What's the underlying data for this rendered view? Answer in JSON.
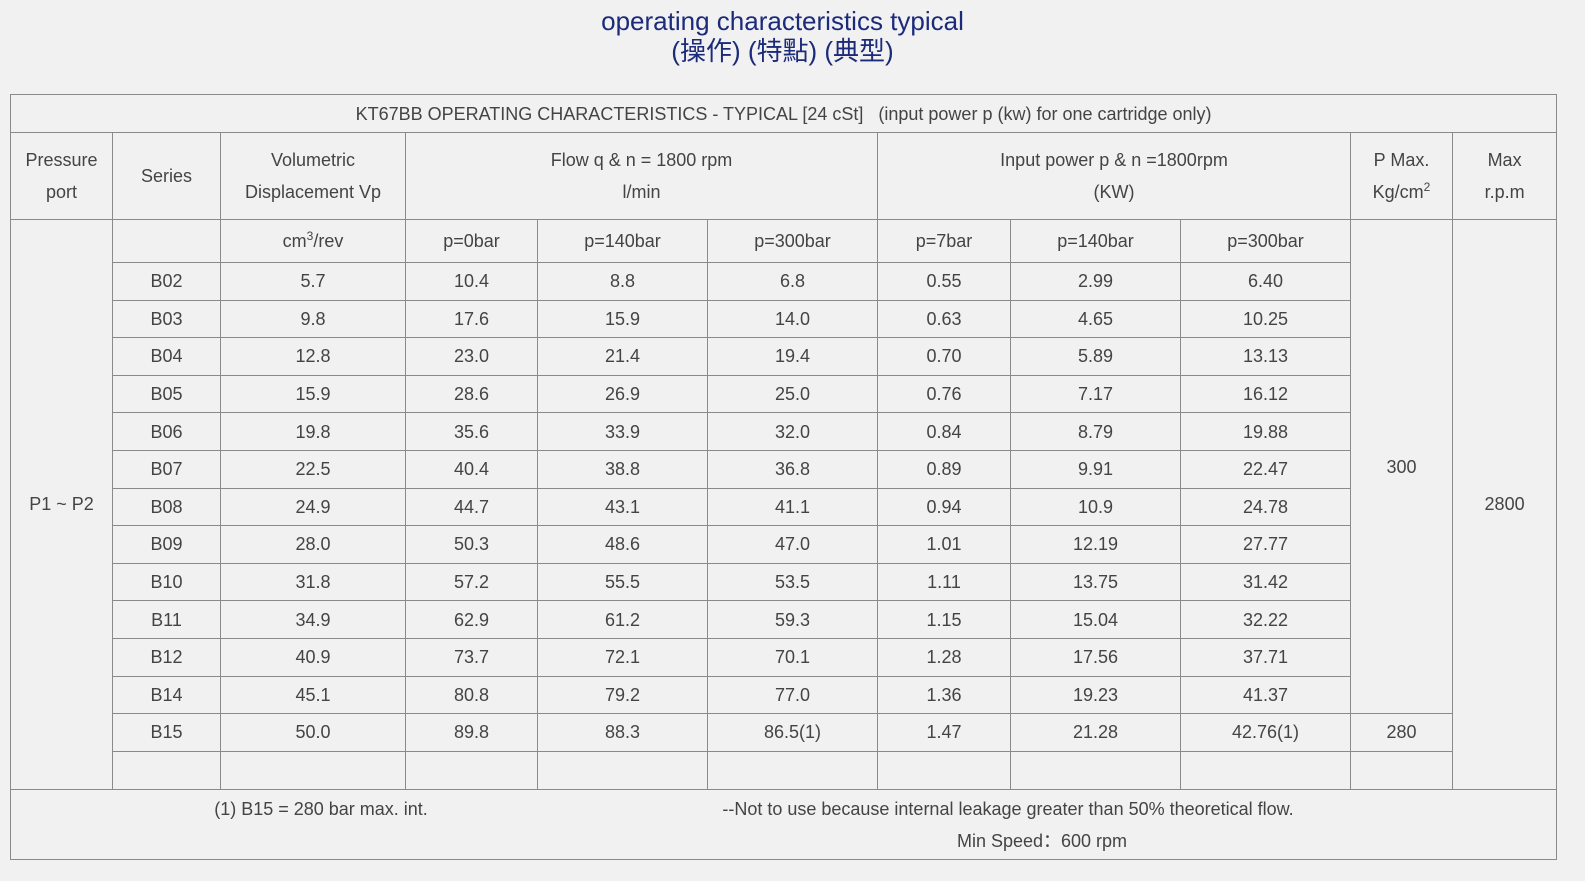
{
  "header": {
    "title": "operating characteristics typical",
    "subtitle": "(操作) (特點) (典型)"
  },
  "table": {
    "caption": "KT67BB OPERATING CHARACTERISTICS - TYPICAL [24 cSt]   (input power p (kw) for one cartridge only)",
    "head": {
      "pressure_port": [
        "Pressure",
        "port"
      ],
      "series": "Series",
      "displacement": [
        "Volumetric",
        "Displacement Vp"
      ],
      "flow": [
        "Flow q & n = 1800 rpm",
        "l/min"
      ],
      "power": [
        "Input power p & n =1800rpm",
        "(KW)"
      ],
      "pmax": {
        "line": "P Max.",
        "unit": "Kg/cm",
        "sup": "2"
      },
      "max_rpm": [
        "Max",
        "r.p.m"
      ]
    },
    "subhead": {
      "displacement_unit": {
        "unit": "cm",
        "sup": "3",
        "rest": "/rev"
      },
      "flow": [
        "p=0bar",
        "p=140bar",
        "p=300bar"
      ],
      "power": [
        "p=7bar",
        "p=140bar",
        "p=300bar"
      ]
    },
    "pressure_port": "P1 ~ P2",
    "pmax": [
      "300",
      "280"
    ],
    "max_rpm": "2800",
    "rows": [
      [
        "B02",
        "5.7",
        "10.4",
        "8.8",
        "6.8",
        "0.55",
        "2.99",
        "6.40"
      ],
      [
        "B03",
        "9.8",
        "17.6",
        "15.9",
        "14.0",
        "0.63",
        "4.65",
        "10.25"
      ],
      [
        "B04",
        "12.8",
        "23.0",
        "21.4",
        "19.4",
        "0.70",
        "5.89",
        "13.13"
      ],
      [
        "B05",
        "15.9",
        "28.6",
        "26.9",
        "25.0",
        "0.76",
        "7.17",
        "16.12"
      ],
      [
        "B06",
        "19.8",
        "35.6",
        "33.9",
        "32.0",
        "0.84",
        "8.79",
        "19.88"
      ],
      [
        "B07",
        "22.5",
        "40.4",
        "38.8",
        "36.8",
        "0.89",
        "9.91",
        "22.47"
      ],
      [
        "B08",
        "24.9",
        "44.7",
        "43.1",
        "41.1",
        "0.94",
        "10.9",
        "24.78"
      ],
      [
        "B09",
        "28.0",
        "50.3",
        "48.6",
        "47.0",
        "1.01",
        "12.19",
        "27.77"
      ],
      [
        "B10",
        "31.8",
        "57.2",
        "55.5",
        "53.5",
        "1.11",
        "13.75",
        "31.42"
      ],
      [
        "B11",
        "34.9",
        "62.9",
        "61.2",
        "59.3",
        "1.15",
        "15.04",
        "32.22"
      ],
      [
        "B12",
        "40.9",
        "73.7",
        "72.1",
        "70.1",
        "1.28",
        "17.56",
        "37.71"
      ],
      [
        "B14",
        "45.1",
        "80.8",
        "79.2",
        "77.0",
        "1.36",
        "19.23",
        "41.37"
      ],
      [
        "B15",
        "50.0",
        "89.8",
        "88.3",
        "86.5(1)",
        "1.47",
        "21.28",
        "42.76(1)"
      ]
    ],
    "footer": {
      "note": "(1) B15 = 280 bar max. int.",
      "warning": "--Not to use because internal leakage greater than 50% theoretical flow.",
      "min_speed": "Min Speed：600 rpm"
    }
  }
}
